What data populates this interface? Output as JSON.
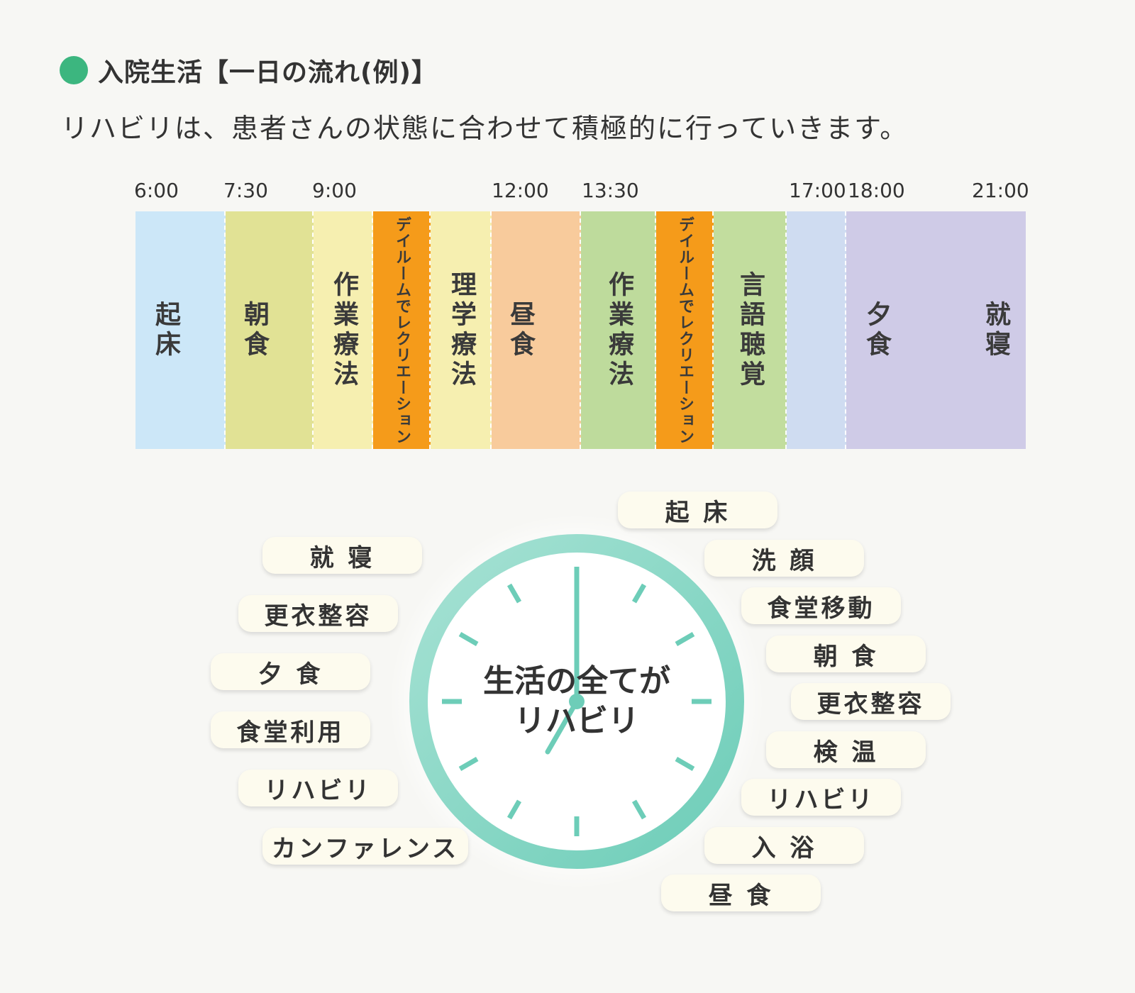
{
  "colors": {
    "accent": "#3cb67f",
    "wake": "#cce7f8",
    "breakfast": "#e1e295",
    "therapy_yellow": "#f6efb0",
    "recreation": "#f59b1a",
    "lunch": "#f8cb9c",
    "occupational_pm": "#bedb9c",
    "speech": "#c2dd9e",
    "free": "#cfdcf1",
    "evening": "#cfcbe7",
    "clock": "#6dcdb8",
    "clock_light": "#a7e2d4"
  },
  "header": {
    "title": "入院生活【一日の流れ(例)】",
    "subtitle": "リハビリは、患者さんの状態に合わせて積極的に行っていきます。"
  },
  "timeline": {
    "times": [
      "6:00",
      "7:30",
      "9:00",
      "12:00",
      "13:30",
      "17:00",
      "18:00",
      "21:00"
    ],
    "segments": [
      {
        "label": "起床"
      },
      {
        "label": "朝食"
      },
      {
        "label": "作業療法"
      },
      {
        "label": "デイルームでレクリエーション"
      },
      {
        "label": "理学療法"
      },
      {
        "label": "昼食"
      },
      {
        "label": "作業療法"
      },
      {
        "label": "デイルームでレクリエーション"
      },
      {
        "label": "言語聴覚"
      },
      {
        "label": ""
      },
      {
        "label": "夕食"
      },
      {
        "label": "就寝"
      }
    ]
  },
  "clock": {
    "center_line1": "生活の全てが",
    "center_line2": "リハビリ"
  },
  "activities": {
    "right": [
      "起 床",
      "洗 顔",
      "食堂移動",
      "朝 食",
      "更衣整容",
      "検 温",
      "リハビリ",
      "入 浴",
      "昼 食"
    ],
    "left": [
      "就 寝",
      "更衣整容",
      "夕 食",
      "食堂利用",
      "リハビリ",
      "カンファレンス"
    ]
  }
}
